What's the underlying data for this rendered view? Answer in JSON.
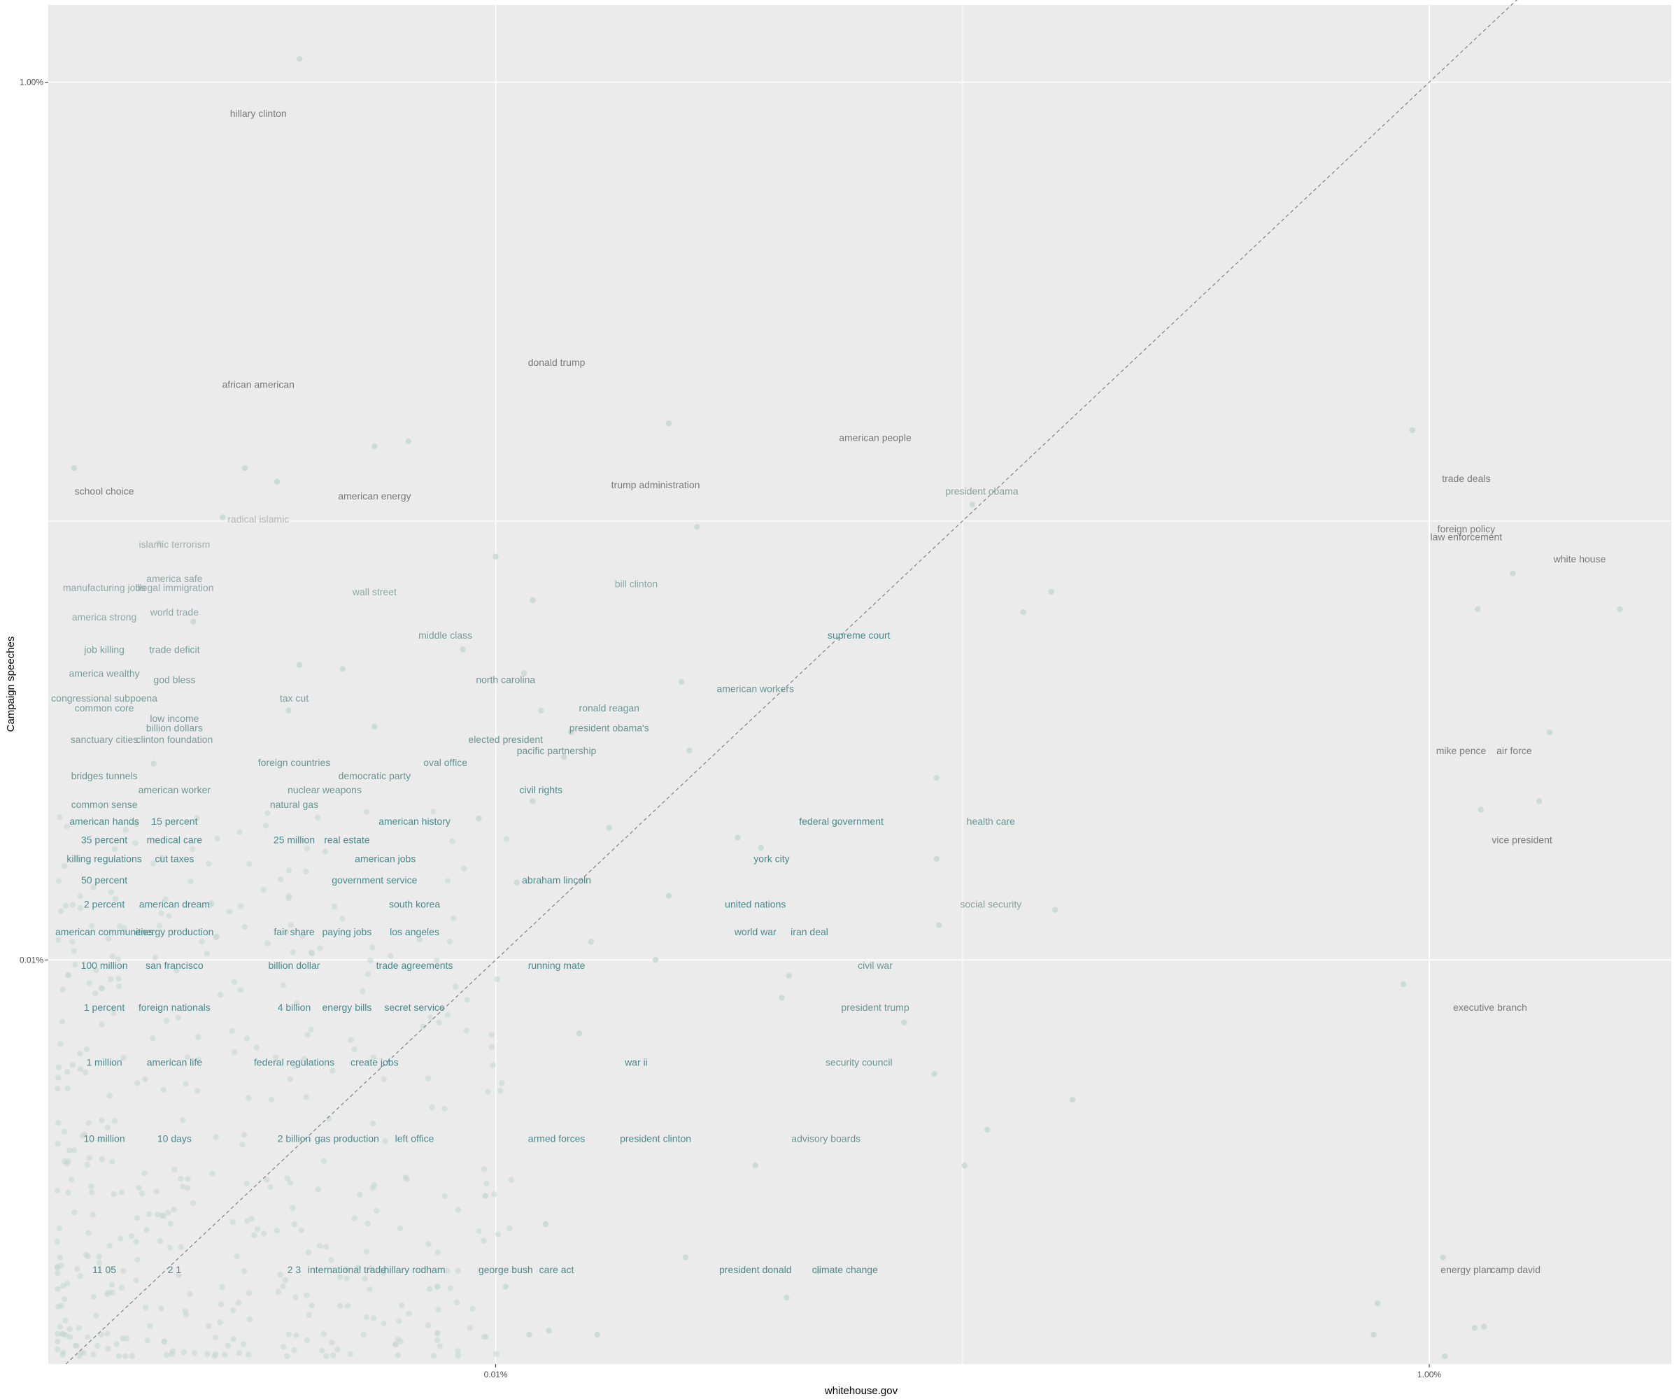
{
  "chart_data": {
    "type": "scatter",
    "title": "",
    "xlabel": "whitehouse.gov",
    "ylabel": "Campaign speeches",
    "x_scale": "log10",
    "y_scale": "log10",
    "xlim": [
      1.1e-05,
      0.033
    ],
    "ylim": [
      1.2e-05,
      0.015
    ],
    "x_ticks": [
      {
        "value": 0.0001,
        "label": "0.01%"
      },
      {
        "value": 0.01,
        "label": "1.00%"
      }
    ],
    "y_ticks": [
      {
        "value": 0.0001,
        "label": "0.01%"
      },
      {
        "value": 0.01,
        "label": "1.00%"
      }
    ],
    "reference_line": {
      "type": "diagonal y = x",
      "style": "dashed",
      "color": "#808080"
    },
    "grid": true,
    "colors": {
      "panel_background": "#ebebeb",
      "grid": "#ffffff",
      "low_ratio_text": "#4a8a8a",
      "high_ratio_text": "#808080",
      "points": "#c2d6d0"
    },
    "labels": [
      {
        "text": "hillary clinton",
        "x": 3.1e-05,
        "y": 0.0085,
        "color": "#7a7a7a"
      },
      {
        "text": "donald trump",
        "x": 0.000135,
        "y": 0.0023,
        "color": "#7a7a7a"
      },
      {
        "text": "african american",
        "x": 3.1e-05,
        "y": 0.00205,
        "color": "#7a7a7a"
      },
      {
        "text": "american people",
        "x": 0.00065,
        "y": 0.00155,
        "color": "#7a7a7a"
      },
      {
        "text": "trump administration",
        "x": 0.00022,
        "y": 0.00121,
        "color": "#7a7a7a"
      },
      {
        "text": "american energy",
        "x": 5.5e-05,
        "y": 0.00114,
        "color": "#7a7a7a"
      },
      {
        "text": "school choice",
        "x": 1.45e-05,
        "y": 0.00117,
        "color": "#7a7a7a"
      },
      {
        "text": "president obama",
        "x": 0.0011,
        "y": 0.00117,
        "color": "#8aa09c"
      },
      {
        "text": "radical islamic",
        "x": 3.1e-05,
        "y": 0.00101,
        "color": "#b3b3b3"
      },
      {
        "text": "islamic terrorism",
        "x": 2.05e-05,
        "y": 0.000885,
        "color": "#a3aeab"
      },
      {
        "text": "trade deals",
        "x": 0.012,
        "y": 0.00125,
        "color": "#7a7a7a"
      },
      {
        "text": "foreign policy",
        "x": 0.012,
        "y": 0.00096,
        "color": "#7a7a7a"
      },
      {
        "text": "law enforcement",
        "x": 0.012,
        "y": 0.00092,
        "color": "#7a7a7a"
      },
      {
        "text": "white house",
        "x": 0.021,
        "y": 0.00082,
        "color": "#7a7a7a"
      },
      {
        "text": "america safe",
        "x": 2.05e-05,
        "y": 0.00074,
        "color": "#8fa8a4"
      },
      {
        "text": "illegal immigration",
        "x": 2.05e-05,
        "y": 0.000705,
        "color": "#8fa8a4"
      },
      {
        "text": "manufacturing jobs",
        "x": 1.45e-05,
        "y": 0.000705,
        "color": "#8fa8a4"
      },
      {
        "text": "wall street",
        "x": 5.5e-05,
        "y": 0.00069,
        "color": "#8fa8a4"
      },
      {
        "text": "bill clinton",
        "x": 0.0002,
        "y": 0.00072,
        "color": "#8fa8a4"
      },
      {
        "text": "world trade",
        "x": 2.05e-05,
        "y": 0.00062,
        "color": "#8fa8a4"
      },
      {
        "text": "america strong",
        "x": 1.45e-05,
        "y": 0.000605,
        "color": "#8fa8a4"
      },
      {
        "text": "middle class",
        "x": 7.8e-05,
        "y": 0.00055,
        "color": "#7a9c98"
      },
      {
        "text": "supreme court",
        "x": 0.0006,
        "y": 0.00055,
        "color": "#4a8a8a"
      },
      {
        "text": "job killing",
        "x": 1.45e-05,
        "y": 0.00051,
        "color": "#7a9c98"
      },
      {
        "text": "trade deficit",
        "x": 2.05e-05,
        "y": 0.00051,
        "color": "#7a9c98"
      },
      {
        "text": "america wealthy",
        "x": 1.45e-05,
        "y": 0.00045,
        "color": "#7a9c98"
      },
      {
        "text": "god bless",
        "x": 2.05e-05,
        "y": 0.000435,
        "color": "#7a9c98"
      },
      {
        "text": "north carolina",
        "x": 0.000105,
        "y": 0.000435,
        "color": "#6a9591"
      },
      {
        "text": "american workers",
        "x": 0.00036,
        "y": 0.000415,
        "color": "#6a9591"
      },
      {
        "text": "congressional subpoena",
        "x": 1.45e-05,
        "y": 0.000395,
        "color": "#7a9c98"
      },
      {
        "text": "tax cut",
        "x": 3.7e-05,
        "y": 0.000395,
        "color": "#7a9c98"
      },
      {
        "text": "common core",
        "x": 1.45e-05,
        "y": 0.000375,
        "color": "#7a9c98"
      },
      {
        "text": "ronald reagan",
        "x": 0.000175,
        "y": 0.000375,
        "color": "#6a9591"
      },
      {
        "text": "low income",
        "x": 2.05e-05,
        "y": 0.000355,
        "color": "#7a9c98"
      },
      {
        "text": "billion dollars",
        "x": 2.05e-05,
        "y": 0.000338,
        "color": "#7a9c98"
      },
      {
        "text": "president obama's",
        "x": 0.000175,
        "y": 0.000338,
        "color": "#6a9591"
      },
      {
        "text": "sanctuary cities",
        "x": 1.45e-05,
        "y": 0.000318,
        "color": "#7a9c98"
      },
      {
        "text": "clinton foundation",
        "x": 2.05e-05,
        "y": 0.000318,
        "color": "#7a9c98"
      },
      {
        "text": "elected president",
        "x": 0.000105,
        "y": 0.000318,
        "color": "#6a9591"
      },
      {
        "text": "pacific partnership",
        "x": 0.000135,
        "y": 0.0003,
        "color": "#6a9591"
      },
      {
        "text": "mike pence",
        "x": 0.0117,
        "y": 0.0003,
        "color": "#7a7a7a"
      },
      {
        "text": "air force",
        "x": 0.0152,
        "y": 0.0003,
        "color": "#7a7a7a"
      },
      {
        "text": "foreign countries",
        "x": 3.7e-05,
        "y": 0.000282,
        "color": "#6a9591"
      },
      {
        "text": "oval office",
        "x": 7.8e-05,
        "y": 0.000282,
        "color": "#6a9591"
      },
      {
        "text": "democratic party",
        "x": 5.5e-05,
        "y": 0.000263,
        "color": "#6a9591"
      },
      {
        "text": "bridges tunnels",
        "x": 1.45e-05,
        "y": 0.000263,
        "color": "#6a9591"
      },
      {
        "text": "american worker",
        "x": 2.05e-05,
        "y": 0.000244,
        "color": "#6a9591"
      },
      {
        "text": "nuclear weapons",
        "x": 4.3e-05,
        "y": 0.000244,
        "color": "#6a9591"
      },
      {
        "text": "civil rights",
        "x": 0.000125,
        "y": 0.000244,
        "color": "#4a8a8a"
      },
      {
        "text": "common sense",
        "x": 1.45e-05,
        "y": 0.000226,
        "color": "#6a9591"
      },
      {
        "text": "natural gas",
        "x": 3.7e-05,
        "y": 0.000226,
        "color": "#6a9591"
      },
      {
        "text": "american hands",
        "x": 1.45e-05,
        "y": 0.000207,
        "color": "#4a8a8a"
      },
      {
        "text": "15 percent",
        "x": 2.05e-05,
        "y": 0.000207,
        "color": "#4a8a8a"
      },
      {
        "text": "american history",
        "x": 6.7e-05,
        "y": 0.000207,
        "color": "#4a8a8a"
      },
      {
        "text": "federal government",
        "x": 0.00055,
        "y": 0.000207,
        "color": "#4a8a8a"
      },
      {
        "text": "health care",
        "x": 0.00115,
        "y": 0.000207,
        "color": "#6a9591"
      },
      {
        "text": "35 percent",
        "x": 1.45e-05,
        "y": 0.000188,
        "color": "#4a8a8a"
      },
      {
        "text": "medical care",
        "x": 2.05e-05,
        "y": 0.000188,
        "color": "#4a8a8a"
      },
      {
        "text": "25 million",
        "x": 3.7e-05,
        "y": 0.000188,
        "color": "#4a8a8a"
      },
      {
        "text": "real estate",
        "x": 4.8e-05,
        "y": 0.000188,
        "color": "#4a8a8a"
      },
      {
        "text": "vice president",
        "x": 0.0158,
        "y": 0.000188,
        "color": "#7a7a7a"
      },
      {
        "text": "killing regulations",
        "x": 1.45e-05,
        "y": 0.00017,
        "color": "#4a8a8a"
      },
      {
        "text": "cut taxes",
        "x": 2.05e-05,
        "y": 0.00017,
        "color": "#4a8a8a"
      },
      {
        "text": "american jobs",
        "x": 5.8e-05,
        "y": 0.00017,
        "color": "#4a8a8a"
      },
      {
        "text": "york city",
        "x": 0.00039,
        "y": 0.00017,
        "color": "#4a8a8a"
      },
      {
        "text": "50 percent",
        "x": 1.45e-05,
        "y": 0.000152,
        "color": "#4a8a8a"
      },
      {
        "text": "government service",
        "x": 5.5e-05,
        "y": 0.000152,
        "color": "#4a8a8a"
      },
      {
        "text": "abraham lincoln",
        "x": 0.000135,
        "y": 0.000152,
        "color": "#4a8a8a"
      },
      {
        "text": "2 percent",
        "x": 1.45e-05,
        "y": 0.000134,
        "color": "#4a8a8a"
      },
      {
        "text": "american dream",
        "x": 2.05e-05,
        "y": 0.000134,
        "color": "#4a8a8a"
      },
      {
        "text": "south korea",
        "x": 6.7e-05,
        "y": 0.000134,
        "color": "#4a8a8a"
      },
      {
        "text": "united nations",
        "x": 0.00036,
        "y": 0.000134,
        "color": "#4a8a8a"
      },
      {
        "text": "social security",
        "x": 0.00115,
        "y": 0.000134,
        "color": "#8aa09c"
      },
      {
        "text": "american communities",
        "x": 1.45e-05,
        "y": 0.000116,
        "color": "#4a8a8a"
      },
      {
        "text": "energy production",
        "x": 2.05e-05,
        "y": 0.000116,
        "color": "#4a8a8a"
      },
      {
        "text": "fair share",
        "x": 3.7e-05,
        "y": 0.000116,
        "color": "#4a8a8a"
      },
      {
        "text": "paying jobs",
        "x": 4.8e-05,
        "y": 0.000116,
        "color": "#4a8a8a"
      },
      {
        "text": "los angeles",
        "x": 6.7e-05,
        "y": 0.000116,
        "color": "#4a8a8a"
      },
      {
        "text": "world war",
        "x": 0.00036,
        "y": 0.000116,
        "color": "#4a8a8a"
      },
      {
        "text": "iran deal",
        "x": 0.00047,
        "y": 0.000116,
        "color": "#4a8a8a"
      },
      {
        "text": "100 million",
        "x": 1.45e-05,
        "y": 9.72e-05,
        "color": "#4a8a8a"
      },
      {
        "text": "san francisco",
        "x": 2.05e-05,
        "y": 9.72e-05,
        "color": "#4a8a8a"
      },
      {
        "text": "billion dollar",
        "x": 3.7e-05,
        "y": 9.72e-05,
        "color": "#4a8a8a"
      },
      {
        "text": "trade agreements",
        "x": 6.7e-05,
        "y": 9.72e-05,
        "color": "#4a8a8a"
      },
      {
        "text": "running mate",
        "x": 0.000135,
        "y": 9.72e-05,
        "color": "#4a8a8a"
      },
      {
        "text": "civil war",
        "x": 0.00065,
        "y": 9.72e-05,
        "color": "#6a9591"
      },
      {
        "text": "1 percent",
        "x": 1.45e-05,
        "y": 7.8e-05,
        "color": "#4a8a8a"
      },
      {
        "text": "foreign nationals",
        "x": 2.05e-05,
        "y": 7.8e-05,
        "color": "#4a8a8a"
      },
      {
        "text": "4 billion",
        "x": 3.7e-05,
        "y": 7.8e-05,
        "color": "#4a8a8a"
      },
      {
        "text": "energy bills",
        "x": 4.8e-05,
        "y": 7.8e-05,
        "color": "#4a8a8a"
      },
      {
        "text": "secret service",
        "x": 6.7e-05,
        "y": 7.8e-05,
        "color": "#4a8a8a"
      },
      {
        "text": "president trump",
        "x": 0.00065,
        "y": 7.8e-05,
        "color": "#6a9591"
      },
      {
        "text": "executive branch",
        "x": 0.0135,
        "y": 7.8e-05,
        "color": "#7a7a7a"
      },
      {
        "text": "1 million",
        "x": 1.45e-05,
        "y": 5.85e-05,
        "color": "#4a8a8a"
      },
      {
        "text": "american life",
        "x": 2.05e-05,
        "y": 5.85e-05,
        "color": "#4a8a8a"
      },
      {
        "text": "federal regulations",
        "x": 3.7e-05,
        "y": 5.85e-05,
        "color": "#4a8a8a"
      },
      {
        "text": "create jobs",
        "x": 5.5e-05,
        "y": 5.85e-05,
        "color": "#4a8a8a"
      },
      {
        "text": "war ii",
        "x": 0.0002,
        "y": 5.85e-05,
        "color": "#4a8a8a"
      },
      {
        "text": "security council",
        "x": 0.0006,
        "y": 5.85e-05,
        "color": "#6a9591"
      },
      {
        "text": "10 million",
        "x": 1.45e-05,
        "y": 3.92e-05,
        "color": "#4a8a8a"
      },
      {
        "text": "10 days",
        "x": 2.05e-05,
        "y": 3.92e-05,
        "color": "#4a8a8a"
      },
      {
        "text": "2 billion",
        "x": 3.7e-05,
        "y": 3.92e-05,
        "color": "#4a8a8a"
      },
      {
        "text": "gas production",
        "x": 4.8e-05,
        "y": 3.92e-05,
        "color": "#4a8a8a"
      },
      {
        "text": "left office",
        "x": 6.7e-05,
        "y": 3.92e-05,
        "color": "#4a8a8a"
      },
      {
        "text": "armed forces",
        "x": 0.000135,
        "y": 3.92e-05,
        "color": "#4a8a8a"
      },
      {
        "text": "president clinton",
        "x": 0.00022,
        "y": 3.92e-05,
        "color": "#4a8a8a"
      },
      {
        "text": "advisory boards",
        "x": 0.00051,
        "y": 3.92e-05,
        "color": "#6a9591"
      },
      {
        "text": "11 05",
        "x": 1.45e-05,
        "y": 1.97e-05,
        "color": "#4a8a8a"
      },
      {
        "text": "2 1",
        "x": 2.05e-05,
        "y": 1.97e-05,
        "color": "#4a8a8a"
      },
      {
        "text": "2 3",
        "x": 3.7e-05,
        "y": 1.97e-05,
        "color": "#4a8a8a"
      },
      {
        "text": "international trade",
        "x": 4.8e-05,
        "y": 1.97e-05,
        "color": "#4a8a8a"
      },
      {
        "text": "hillary rodham",
        "x": 6.7e-05,
        "y": 1.97e-05,
        "color": "#4a8a8a"
      },
      {
        "text": "george bush",
        "x": 0.000105,
        "y": 1.97e-05,
        "color": "#4a8a8a"
      },
      {
        "text": "care act",
        "x": 0.000135,
        "y": 1.97e-05,
        "color": "#4a8a8a"
      },
      {
        "text": "president donald",
        "x": 0.00036,
        "y": 1.97e-05,
        "color": "#4a8a8a"
      },
      {
        "text": "climate change",
        "x": 0.00056,
        "y": 1.97e-05,
        "color": "#4a8a8a"
      },
      {
        "text": "energy plan",
        "x": 0.012,
        "y": 1.97e-05,
        "color": "#7a7a7a"
      },
      {
        "text": "camp david",
        "x": 0.0153,
        "y": 1.97e-05,
        "color": "#7a7a7a"
      }
    ],
    "points": [
      {
        "x": 3.8e-05,
        "y": 0.0113
      },
      {
        "x": 0.000235,
        "y": 0.00167
      },
      {
        "x": 0.0092,
        "y": 0.00161
      },
      {
        "x": 5.5e-05,
        "y": 0.00148
      },
      {
        "x": 6.5e-05,
        "y": 0.00152
      },
      {
        "x": 1.25e-05,
        "y": 0.00132
      },
      {
        "x": 2.9e-05,
        "y": 0.00132
      },
      {
        "x": 3.4e-05,
        "y": 0.00123
      },
      {
        "x": 0.00105,
        "y": 0.00109
      },
      {
        "x": 2.6e-05,
        "y": 0.00102
      },
      {
        "x": 0.00027,
        "y": 0.00097
      },
      {
        "x": 1.9e-05,
        "y": 0.00089
      },
      {
        "x": 0.0001,
        "y": 0.00083
      },
      {
        "x": 0.0151,
        "y": 0.00076
      },
      {
        "x": 0.00155,
        "y": 0.00069
      },
      {
        "x": 0.00012,
        "y": 0.00066
      },
      {
        "x": 0.0127,
        "y": 0.00063
      },
      {
        "x": 0.0256,
        "y": 0.00063
      },
      {
        "x": 0.00135,
        "y": 0.00062
      },
      {
        "x": 2.25e-05,
        "y": 0.00059
      },
      {
        "x": 8.5e-05,
        "y": 0.00051
      },
      {
        "x": 3.8e-05,
        "y": 0.00047
      },
      {
        "x": 4.7e-05,
        "y": 0.00046
      },
      {
        "x": 0.000115,
        "y": 0.00045
      },
      {
        "x": 0.00025,
        "y": 0.00043
      },
      {
        "x": 3.6e-05,
        "y": 0.00037
      },
      {
        "x": 0.000125,
        "y": 0.00037
      },
      {
        "x": 5.5e-05,
        "y": 0.00034
      },
      {
        "x": 0.000145,
        "y": 0.00033
      },
      {
        "x": 0.0181,
        "y": 0.00033
      },
      {
        "x": 0.00026,
        "y": 0.0003
      },
      {
        "x": 0.00014,
        "y": 0.00029
      },
      {
        "x": 1.85e-05,
        "y": 0.00028
      },
      {
        "x": 0.00088,
        "y": 0.00026
      },
      {
        "x": 0.00012,
        "y": 0.00023
      },
      {
        "x": 0.0172,
        "y": 0.00023
      },
      {
        "x": 0.0129,
        "y": 0.00022
      },
      {
        "x": 9.2e-05,
        "y": 0.00021
      },
      {
        "x": 0.000175,
        "y": 0.0002
      },
      {
        "x": 0.00033,
        "y": 0.00019
      },
      {
        "x": 0.00037,
        "y": 0.00018
      },
      {
        "x": 0.00088,
        "y": 0.00017
      },
      {
        "x": 0.000111,
        "y": 0.00015
      },
      {
        "x": 0.000235,
        "y": 0.00014
      },
      {
        "x": 0.00158,
        "y": 0.00013
      },
      {
        "x": 0.00089,
        "y": 0.00012
      },
      {
        "x": 0.00016,
        "y": 0.00011
      },
      {
        "x": 0.00022,
        "y": 0.0001
      },
      {
        "x": 0.000425,
        "y": 9.2e-05
      },
      {
        "x": 0.0088,
        "y": 8.8e-05
      },
      {
        "x": 0.00041,
        "y": 8.2e-05
      },
      {
        "x": 0.00075,
        "y": 7.2e-05
      },
      {
        "x": 0.000151,
        "y": 6.8e-05
      },
      {
        "x": 0.00087,
        "y": 5.5e-05
      },
      {
        "x": 0.00172,
        "y": 4.8e-05
      },
      {
        "x": 0.00113,
        "y": 4.1e-05
      },
      {
        "x": 0.00036,
        "y": 3.4e-05
      },
      {
        "x": 0.00101,
        "y": 3.4e-05
      },
      {
        "x": 9.5e-05,
        "y": 2.9e-05
      },
      {
        "x": 0.000128,
        "y": 2.5e-05
      },
      {
        "x": 0.000255,
        "y": 2.1e-05
      },
      {
        "x": 0.0107,
        "y": 2.1e-05
      },
      {
        "x": 7.5e-05,
        "y": 1.8e-05
      },
      {
        "x": 0.000105,
        "y": 1.8e-05
      },
      {
        "x": 0.00042,
        "y": 1.7e-05
      },
      {
        "x": 0.00049,
        "y": 1.95e-05
      },
      {
        "x": 0.00775,
        "y": 1.65e-05
      },
      {
        "x": 0.0076,
        "y": 1.4e-05
      },
      {
        "x": 0.000118,
        "y": 1.4e-05
      },
      {
        "x": 0.00013,
        "y": 1.43e-05
      },
      {
        "x": 0.000165,
        "y": 1.4e-05
      },
      {
        "x": 0.0125,
        "y": 1.45e-05
      },
      {
        "x": 0.0131,
        "y": 1.46e-05
      },
      {
        "x": 0.0108,
        "y": 1.25e-05
      },
      {
        "x": 1.95e-05,
        "y": 1.35e-05
      },
      {
        "x": 6.1e-05,
        "y": 1.33e-05
      },
      {
        "x": 7.5e-05,
        "y": 1.41e-05
      }
    ]
  }
}
